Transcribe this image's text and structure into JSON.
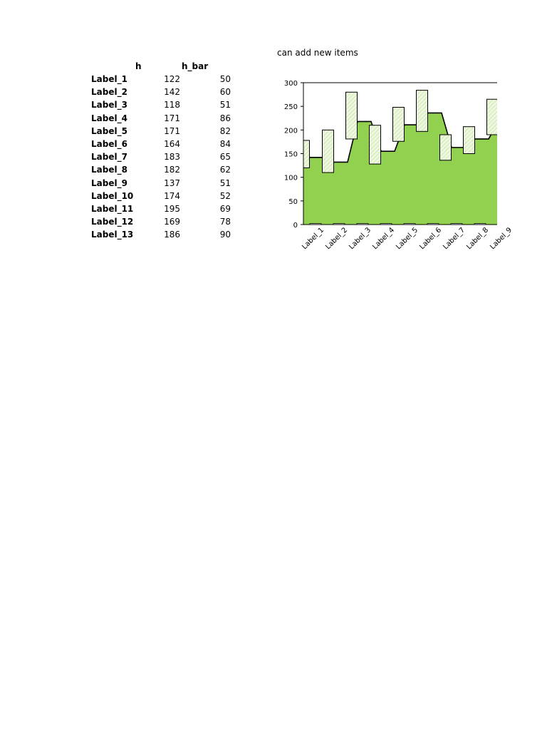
{
  "table": {
    "headers": [
      "h",
      "h_bar"
    ],
    "rows": [
      {
        "label": "Label_1",
        "h": 122,
        "h_bar": 50
      },
      {
        "label": "Label_2",
        "h": 142,
        "h_bar": 60
      },
      {
        "label": "Label_3",
        "h": 118,
        "h_bar": 51
      },
      {
        "label": "Label_4",
        "h": 171,
        "h_bar": 86
      },
      {
        "label": "Label_5",
        "h": 171,
        "h_bar": 82
      },
      {
        "label": "Label_6",
        "h": 164,
        "h_bar": 84
      },
      {
        "label": "Label_7",
        "h": 183,
        "h_bar": 65
      },
      {
        "label": "Label_8",
        "h": 182,
        "h_bar": 62
      },
      {
        "label": "Label_9",
        "h": 137,
        "h_bar": 51
      },
      {
        "label": "Label_10",
        "h": 174,
        "h_bar": 52
      },
      {
        "label": "Label_11",
        "h": 195,
        "h_bar": 69
      },
      {
        "label": "Label_12",
        "h": 169,
        "h_bar": 78
      },
      {
        "label": "Label_13",
        "h": 186,
        "h_bar": 90
      }
    ]
  },
  "chart_data": {
    "type": "area",
    "title": "can add new items",
    "xlabel": "",
    "ylabel": "",
    "ylim": [
      0,
      300
    ],
    "yticks": [
      "0",
      "50",
      "100",
      "150",
      "200",
      "250",
      "300"
    ],
    "categories": [
      "Label_1",
      "Label_2",
      "Label_3",
      "Label_4",
      "Label_5",
      "Label_6",
      "Label_7",
      "Label_8",
      "Label_9"
    ],
    "area_values": [
      142,
      132,
      218,
      155,
      211,
      236,
      163,
      181,
      218
    ],
    "floating_bars": [
      {
        "low": 120,
        "high": 178
      },
      {
        "low": 110,
        "high": 200
      },
      {
        "low": 181,
        "high": 280
      },
      {
        "low": 128,
        "high": 210
      },
      {
        "low": 176,
        "high": 248
      },
      {
        "low": 197,
        "high": 284
      },
      {
        "low": 136,
        "high": 190
      },
      {
        "low": 150,
        "high": 207
      },
      {
        "low": 190,
        "high": 265
      }
    ],
    "grid": false,
    "area_color": "#92d050",
    "bar_fill": "#eef7e0",
    "line_color": "#000000"
  }
}
